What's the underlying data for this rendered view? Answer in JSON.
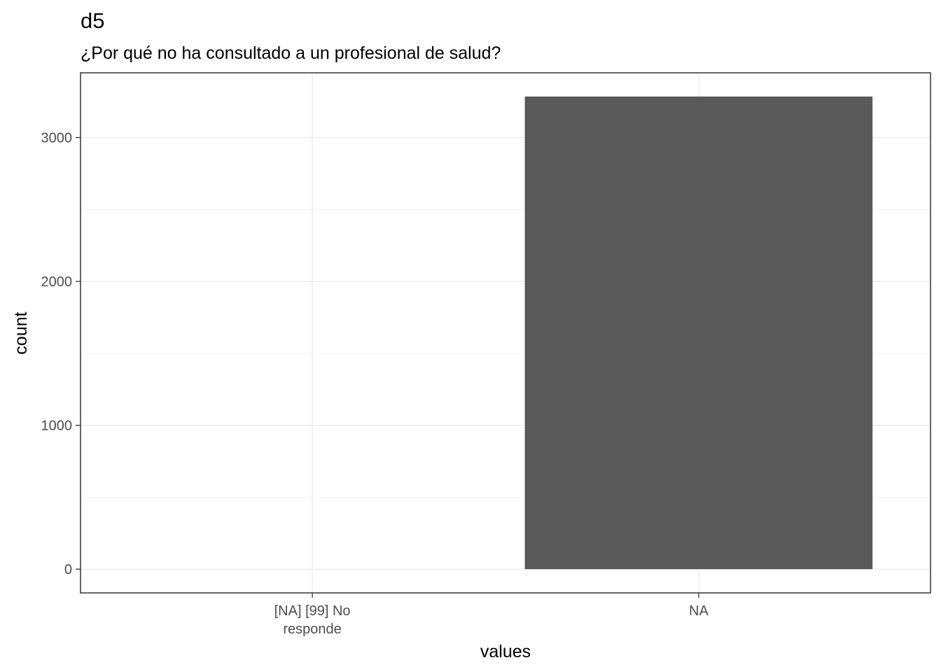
{
  "chart_data": {
    "type": "bar",
    "title": "d5",
    "subtitle": "¿Por qué no ha consultado a un profesional de salud?",
    "xlabel": "values",
    "ylabel": "count",
    "categories": [
      {
        "lines": [
          "[NA] [99] No",
          "responde"
        ]
      },
      {
        "lines": [
          "NA"
        ]
      }
    ],
    "values": [
      0,
      3285
    ],
    "ylim": [
      -165,
      3450
    ],
    "yticks": [
      0,
      1000,
      2000,
      3000
    ],
    "bar_color": "#595959",
    "grid": true,
    "legend": "none"
  }
}
